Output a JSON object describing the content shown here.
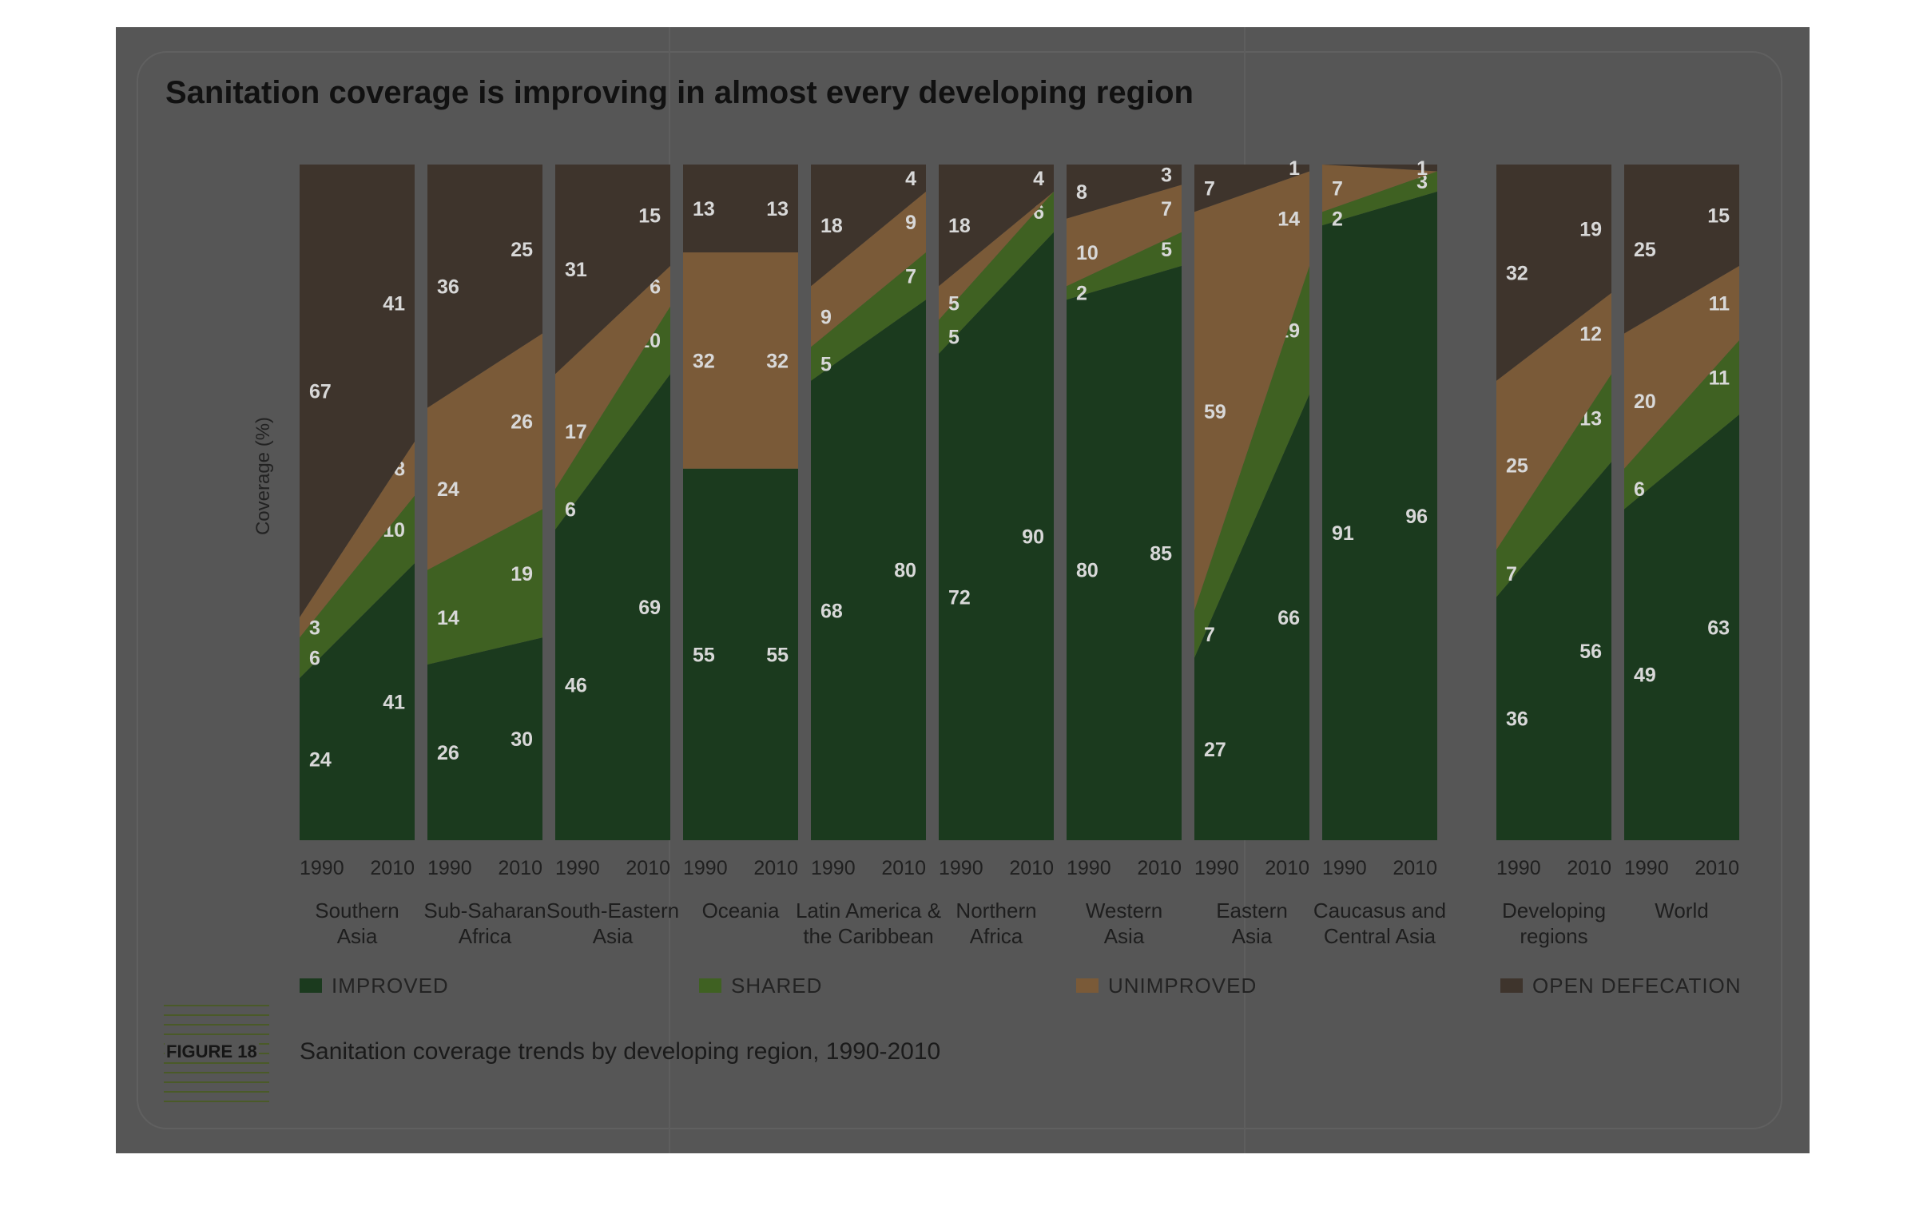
{
  "title": "Sanitation coverage is improving in almost every developing region",
  "figure_label": "FIGURE 18",
  "caption": "Sanitation coverage trends by developing region, 1990-2010",
  "colors": {
    "improved": "#1b3a1e",
    "shared": "#3f6122",
    "unimproved": "#7a5a38",
    "open_defecation": "#3e342c",
    "label_on_dark": "#d8d8d8",
    "label_on_light": "#ffffff"
  },
  "chart_data": {
    "type": "area",
    "ylabel": "Coverage (%)",
    "ylim": [
      0,
      100
    ],
    "x": [
      "1990",
      "2010"
    ],
    "series_names": [
      "IMPROVED",
      "SHARED",
      "UNIMPROVED",
      "OPEN DEFECATION"
    ],
    "regions": [
      {
        "name": "Southern Asia",
        "label_lines": [
          "Southern",
          "Asia"
        ],
        "improved": [
          24,
          41
        ],
        "shared": [
          6,
          10
        ],
        "unimproved": [
          3,
          8
        ],
        "open_defecation": [
          67,
          41
        ]
      },
      {
        "name": "Sub-Saharan Africa",
        "label_lines": [
          "Sub-Saharan",
          "Africa"
        ],
        "improved": [
          26,
          30
        ],
        "shared": [
          14,
          19
        ],
        "unimproved": [
          24,
          26
        ],
        "open_defecation": [
          36,
          25
        ]
      },
      {
        "name": "South-Eastern Asia",
        "label_lines": [
          "South-Eastern",
          "Asia"
        ],
        "improved": [
          46,
          69
        ],
        "shared": [
          6,
          10
        ],
        "unimproved": [
          17,
          6
        ],
        "open_defecation": [
          31,
          15
        ]
      },
      {
        "name": "Oceania",
        "label_lines": [
          "Oceania"
        ],
        "improved": [
          55,
          55
        ],
        "shared": [
          0,
          0
        ],
        "unimproved": [
          32,
          32
        ],
        "open_defecation": [
          13,
          13
        ]
      },
      {
        "name": "Latin America & the Caribbean",
        "label_lines": [
          "Latin America &",
          "the Caribbean"
        ],
        "improved": [
          68,
          80
        ],
        "shared": [
          5,
          7
        ],
        "unimproved": [
          9,
          9
        ],
        "open_defecation": [
          18,
          4
        ]
      },
      {
        "name": "Northern Africa",
        "label_lines": [
          "Northern",
          "Africa"
        ],
        "improved": [
          72,
          90
        ],
        "shared": [
          5,
          6
        ],
        "unimproved": [
          5,
          0
        ],
        "open_defecation": [
          18,
          4
        ]
      },
      {
        "name": "Western Asia",
        "label_lines": [
          "Western",
          "Asia"
        ],
        "improved": [
          80,
          85
        ],
        "shared": [
          2,
          5
        ],
        "unimproved": [
          10,
          7
        ],
        "open_defecation": [
          8,
          3
        ]
      },
      {
        "name": "Eastern Asia",
        "label_lines": [
          "Eastern",
          "Asia"
        ],
        "improved": [
          27,
          66
        ],
        "shared": [
          7,
          19
        ],
        "unimproved": [
          59,
          14
        ],
        "open_defecation": [
          7,
          1
        ]
      },
      {
        "name": "Caucasus and Central Asia",
        "label_lines": [
          "Caucasus and",
          "Central Asia"
        ],
        "improved": [
          91,
          96
        ],
        "shared": [
          2,
          3
        ],
        "unimproved": [
          7,
          0
        ],
        "open_defecation": [
          0,
          1
        ]
      },
      {
        "name": "Developing regions",
        "label_lines": [
          "Developing",
          "regions"
        ],
        "improved": [
          36,
          56
        ],
        "shared": [
          7,
          13
        ],
        "unimproved": [
          25,
          12
        ],
        "open_defecation": [
          32,
          19
        ]
      },
      {
        "name": "World",
        "label_lines": [
          "World"
        ],
        "improved": [
          49,
          63
        ],
        "shared": [
          6,
          11
        ],
        "unimproved": [
          20,
          11
        ],
        "open_defecation": [
          25,
          15
        ]
      }
    ],
    "legend": [
      "IMPROVED",
      "SHARED",
      "UNIMPROVED",
      "OPEN DEFECATION"
    ],
    "legend_position": "bottom"
  }
}
